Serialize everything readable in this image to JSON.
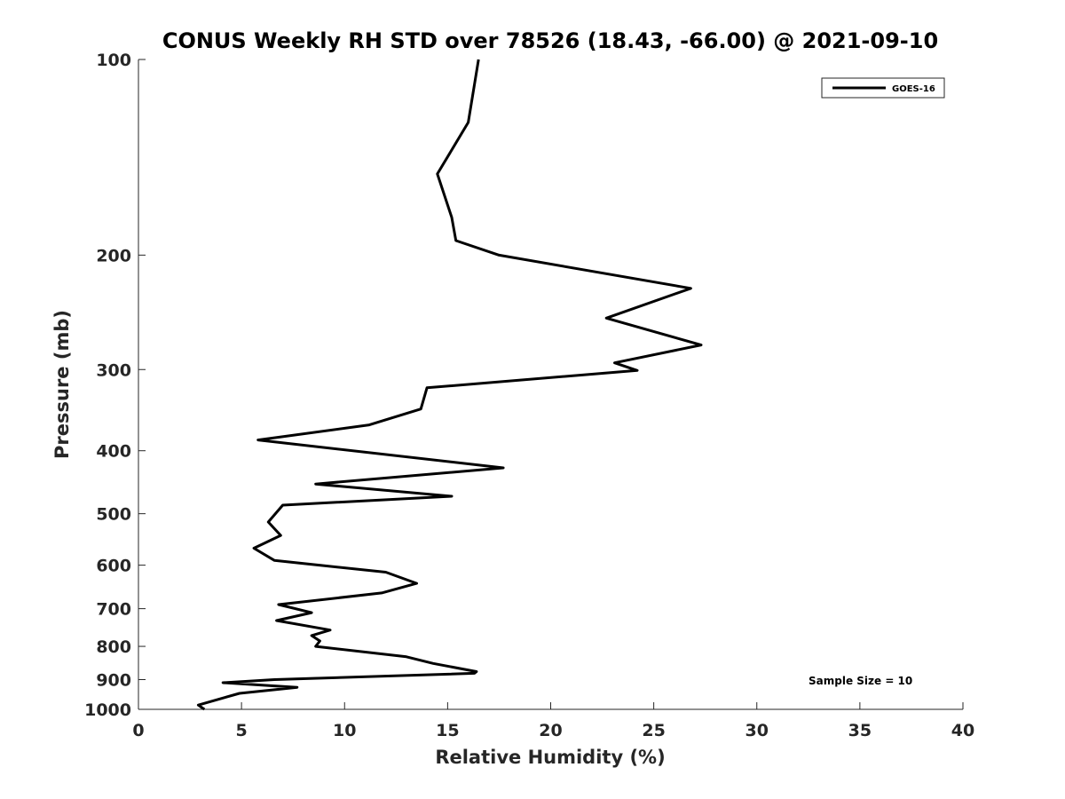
{
  "chart_data": {
    "type": "line",
    "title": "CONUS Weekly RH STD over 78526 (18.43, -66.00) @ 2021-09-10",
    "xlabel": "Relative Humidity (%)",
    "ylabel": "Pressure (mb)",
    "xlim": [
      0,
      40
    ],
    "ylim": [
      100,
      1000
    ],
    "yscale": "log",
    "y_reversed": true,
    "grid": false,
    "legend_position": "top-right",
    "x_ticks": [
      "0",
      "5",
      "10",
      "15",
      "20",
      "25",
      "30",
      "35",
      "40"
    ],
    "y_ticks": [
      "100",
      "200",
      "300",
      "400",
      "500",
      "600",
      "700",
      "800",
      "900",
      "1000"
    ],
    "series": [
      {
        "name": "GOES-16",
        "color": "#000000",
        "x": [
          16.5,
          16.0,
          14.5,
          15.2,
          15.4,
          17.5,
          26.8,
          22.7,
          27.3,
          23.1,
          24.2,
          14.0,
          13.7,
          11.2,
          5.8,
          17.7,
          8.6,
          15.2,
          7.0,
          6.3,
          6.9,
          5.6,
          6.6,
          12.0,
          13.5,
          11.8,
          6.8,
          8.4,
          6.7,
          9.3,
          8.4,
          8.8,
          8.6,
          13.0,
          14.3,
          16.4,
          16.3,
          6.6,
          4.1,
          7.7,
          4.9,
          2.9,
          3.2
        ],
        "y": [
          100,
          125,
          150,
          175,
          190,
          200,
          225,
          250,
          275,
          293,
          301,
          320,
          345,
          365,
          385,
          425,
          450,
          470,
          485,
          515,
          540,
          565,
          590,
          615,
          640,
          662,
          690,
          710,
          730,
          755,
          770,
          785,
          800,
          830,
          850,
          875,
          880,
          900,
          910,
          925,
          945,
          985,
          1000
        ]
      }
    ],
    "annotations": [
      "Sample Size = 10"
    ]
  }
}
